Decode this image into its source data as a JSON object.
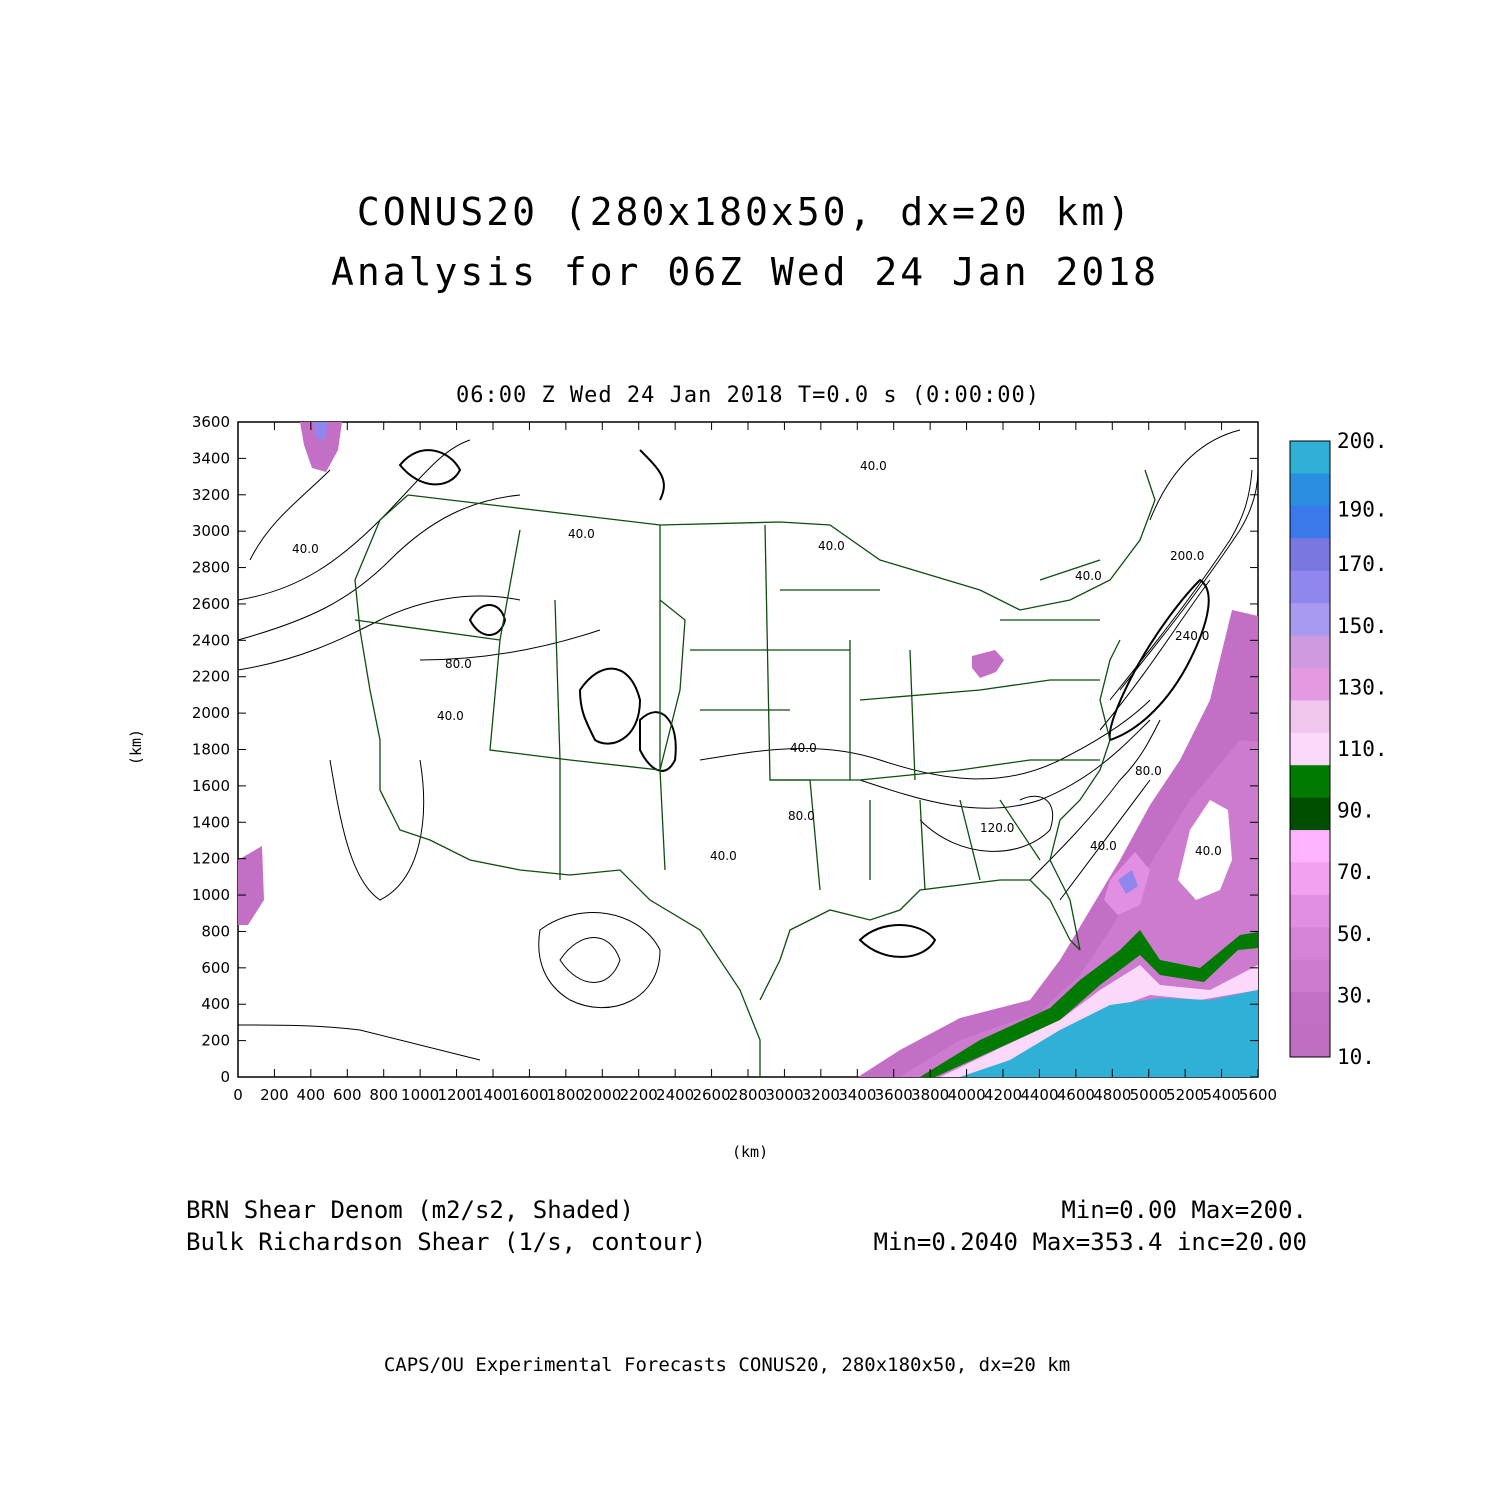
{
  "header": {
    "title_line1": "CONUS20 (280x180x50, dx=20 km)",
    "title_line2": "Analysis for 06Z Wed 24 Jan 2018",
    "subtitle": "06:00 Z Wed 24 Jan 2018   T=0.0 s (0:00:00)"
  },
  "axes": {
    "x_unit": "(km)",
    "y_unit": "(km)",
    "x_ticks": [
      "0",
      "200",
      "400",
      "600",
      "800",
      "1000",
      "1200",
      "1400",
      "1600",
      "1800",
      "2000",
      "2200",
      "2400",
      "2600",
      "2800",
      "3000",
      "3200",
      "3400",
      "3600",
      "3800",
      "4000",
      "4200",
      "4400",
      "4600",
      "4800",
      "5000",
      "5200",
      "5400",
      "5600"
    ],
    "y_ticks": [
      "0",
      "200",
      "400",
      "600",
      "800",
      "1000",
      "1200",
      "1400",
      "1600",
      "1800",
      "2000",
      "2200",
      "2400",
      "2600",
      "2800",
      "3000",
      "3200",
      "3400",
      "3600"
    ],
    "x_range": [
      0,
      5600
    ],
    "y_range": [
      0,
      3600
    ]
  },
  "colorbar": {
    "labels": [
      "200.",
      "190.",
      "170.",
      "150.",
      "130.",
      "110.",
      "90.",
      "70.",
      "50.",
      "30.",
      "10."
    ],
    "colors": [
      "#2fb0d6",
      "#2a8fe0",
      "#3a78ec",
      "#7a78e0",
      "#8f86ee",
      "#a89af0",
      "#cf9be0",
      "#e39ae2",
      "#f1c6ee",
      "#fcd8fb",
      "#007a00",
      "#004f00",
      "#ffb3ff",
      "#f3a0f0",
      "#e28ee2",
      "#d583d6",
      "#cc7bcf",
      "#c36fc5",
      "#bf6ec0"
    ]
  },
  "contour_labels": [
    "40.0",
    "40.0",
    "40.0",
    "80.0",
    "40.0",
    "40.0",
    "80.0",
    "40.0",
    "120.0",
    "40.0",
    "40.0",
    "40.0",
    "80.0",
    "200.0",
    "240.0",
    "40.0"
  ],
  "footer": {
    "shaded_field": "BRN Shear Denom (m2/s2, Shaded)",
    "shaded_stats": "Min=0.00 Max=200.",
    "contour_field": "Bulk Richardson Shear (1/s, contour)",
    "contour_stats": "Min=0.2040 Max=353.4 inc=20.00",
    "credit": "CAPS/OU Experimental Forecasts  CONUS20, 280x180x50, dx=20 km"
  }
}
